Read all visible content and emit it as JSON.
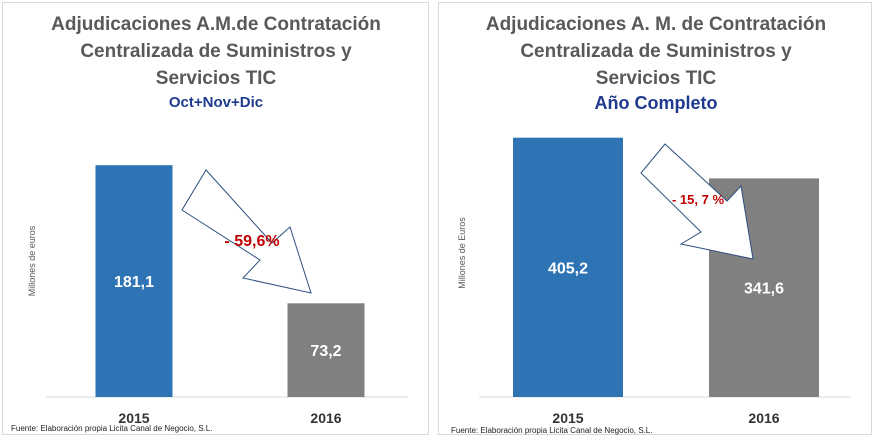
{
  "chart_data": [
    {
      "type": "bar",
      "title": [
        "Adjudicaciones A.M.de Contratación",
        "Centralizada de Suministros y",
        "Servicios TIC"
      ],
      "subtitle": "Oct+Nov+Dic",
      "ylabel": "Millones de euros",
      "categories": [
        "2015",
        "2016"
      ],
      "values": [
        181.1,
        73.2
      ],
      "value_labels": [
        "181,1",
        "73,2"
      ],
      "colors": [
        "#2e74b5",
        "#808080"
      ],
      "ylim": [
        0,
        200
      ],
      "change_label": "- 59,6%",
      "source": "Fuente: Elaboración propia Licita Canal de Negocio, S.L."
    },
    {
      "type": "bar",
      "title": [
        "Adjudicaciones A. M. de Contratación",
        "Centralizada de Suministros y",
        "Servicios TIC"
      ],
      "subtitle": "Año Completo",
      "ylabel": "Millones de Euros",
      "categories": [
        "2015",
        "2016"
      ],
      "values": [
        405.2,
        341.6
      ],
      "value_labels": [
        "405,2",
        "341,6"
      ],
      "colors": [
        "#2e74b5",
        "#808080"
      ],
      "ylim": [
        0,
        425
      ],
      "change_label": "- 15, 7 %",
      "source": "Fuente: Elaboración propia Licita Canal de Negocio, S.L."
    }
  ]
}
